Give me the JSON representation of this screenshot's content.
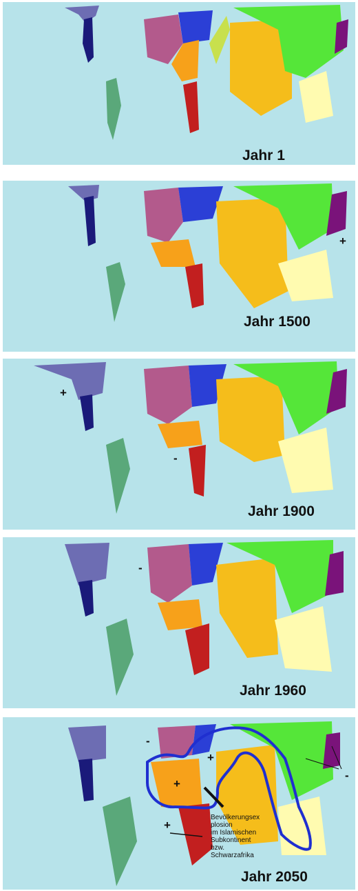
{
  "panels": [
    {
      "year_label": "Jahr 1",
      "signs": []
    },
    {
      "year_label": "Jahr 1500",
      "signs": [
        "+"
      ]
    },
    {
      "year_label": "Jahr 1900",
      "signs": [
        "+",
        "-"
      ]
    },
    {
      "year_label": "Jahr 1960",
      "signs": [
        "-"
      ]
    },
    {
      "year_label": "Jahr 2050",
      "signs": [
        "-",
        "+",
        "+",
        "+",
        "-"
      ]
    }
  ],
  "annotation_2050": {
    "lines": [
      "Bevölkerungsex",
      "plosion",
      "im Islamischen",
      "Subkontinent",
      "bzw.",
      "Schwarzafrika"
    ]
  },
  "colors": {
    "ocean": "#b7e3ea",
    "north_america": "#6d6db3",
    "central_america": "#1a1a7a",
    "south_america": "#5aa87a",
    "europe_west": "#b35a8c",
    "europe_east": "#2b3fd6",
    "russia_light": "#b9c6ff",
    "middle_east": "#f7a11a",
    "north_africa": "#f6c480",
    "subsaharan_africa": "#c21f1f",
    "south_asia": "#f5bd1b",
    "china": "#55e639",
    "japan": "#7a137a",
    "southeast_asia": "#fffbb0",
    "central_asia": "#c8e04d",
    "emphasis_line": "#1f2fd0"
  }
}
